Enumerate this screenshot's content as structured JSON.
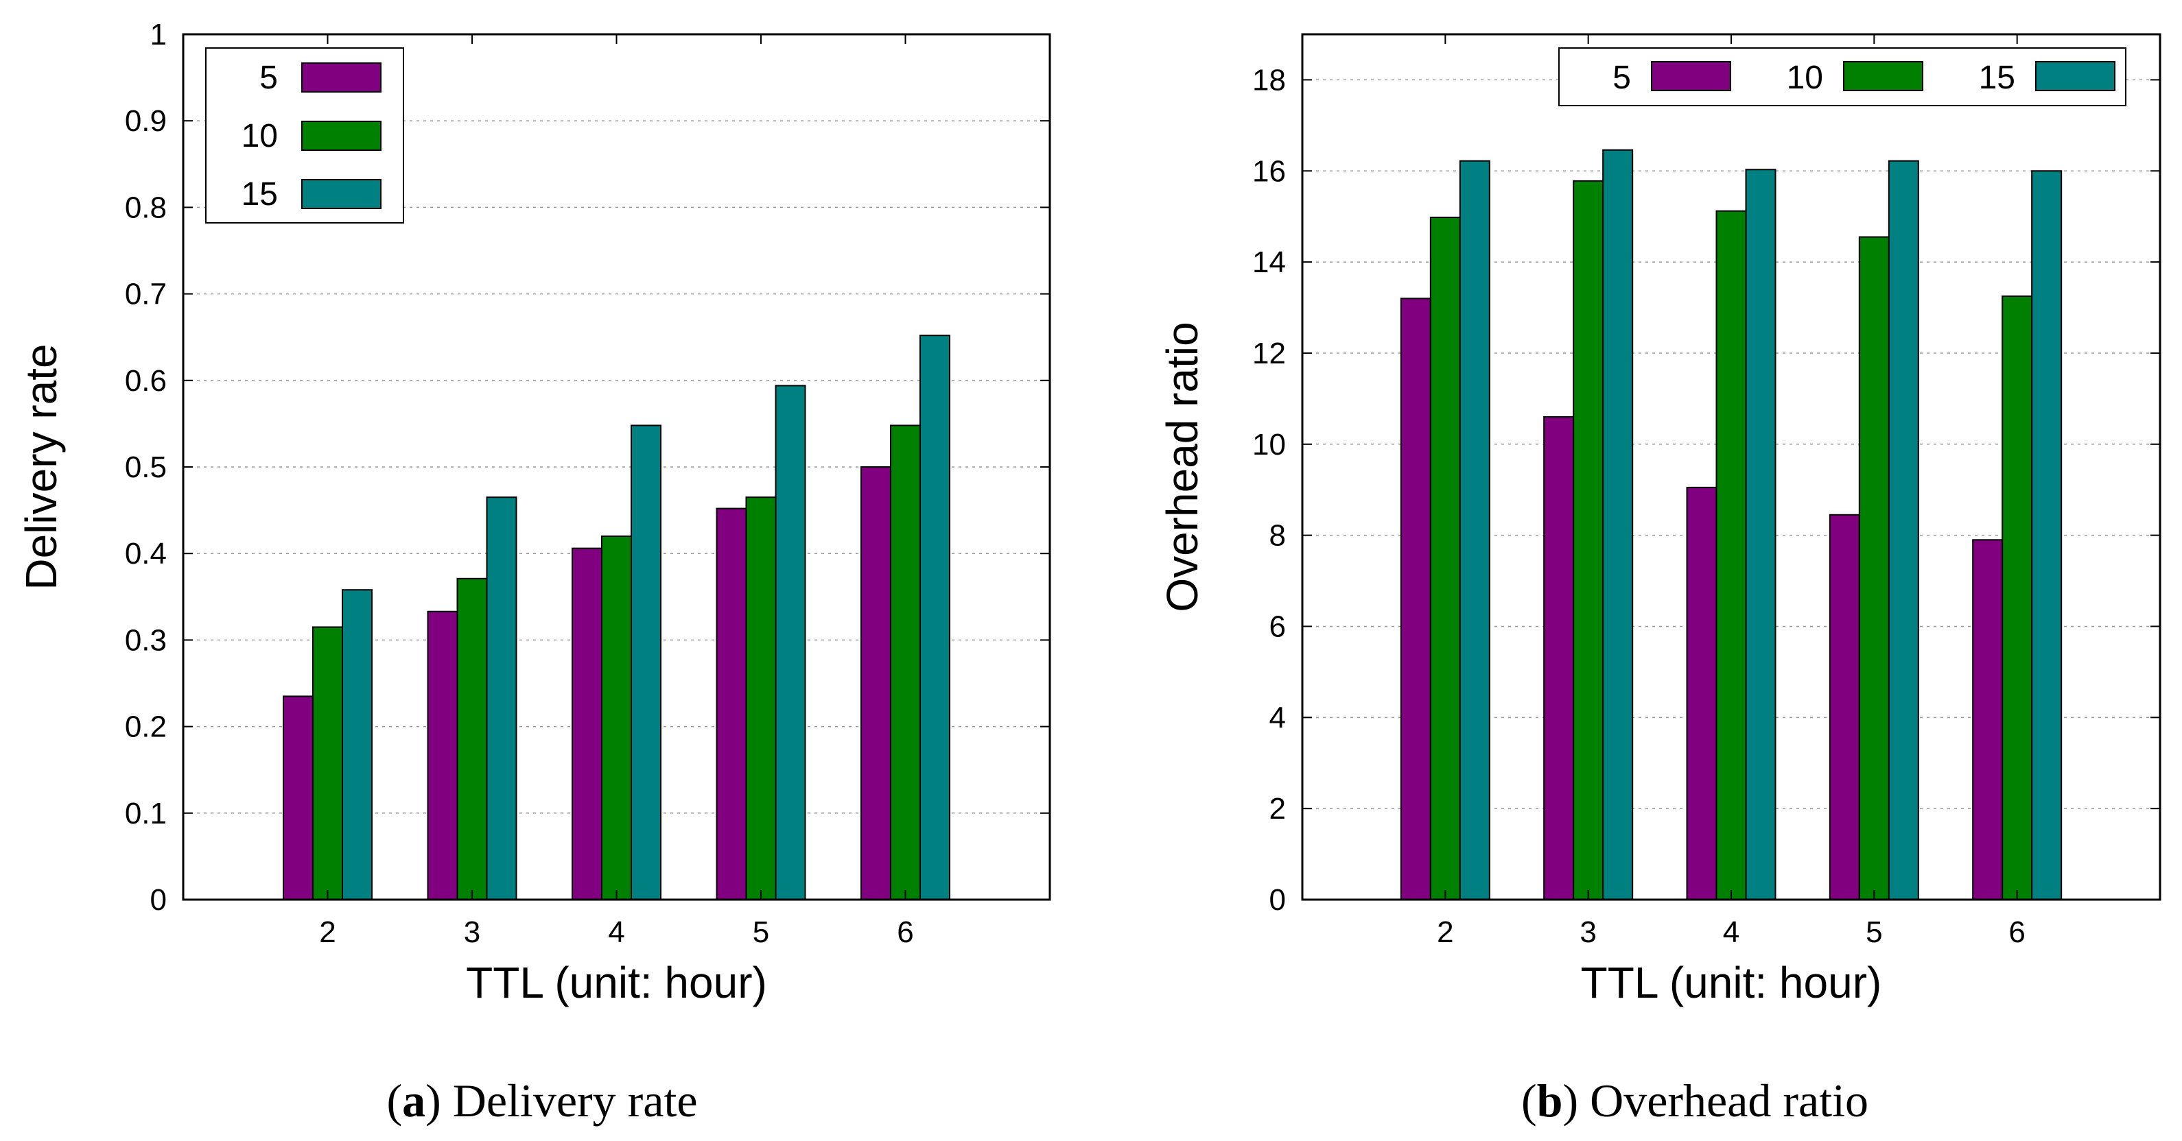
{
  "chart_data": [
    {
      "type": "bar",
      "title": "",
      "xlabel": "TTL (unit: hour)",
      "ylabel": "Delivery rate",
      "categories": [
        "2",
        "3",
        "4",
        "5",
        "6"
      ],
      "ylim": [
        0,
        1
      ],
      "yticks": [
        "0",
        "0.1",
        "0.2",
        "0.3",
        "0.4",
        "0.5",
        "0.6",
        "0.7",
        "0.8",
        "0.9",
        "1"
      ],
      "yticks_values": [
        0,
        0.1,
        0.2,
        0.3,
        0.4,
        0.5,
        0.6,
        0.7,
        0.8,
        0.9,
        1
      ],
      "grid": true,
      "legend_position": "top-left",
      "legend_layout": "vertical",
      "series": [
        {
          "name": "5",
          "color": "#800080",
          "values": [
            0.235,
            0.333,
            0.406,
            0.452,
            0.5
          ]
        },
        {
          "name": "10",
          "color": "#008000",
          "values": [
            0.315,
            0.371,
            0.42,
            0.465,
            0.548
          ]
        },
        {
          "name": "15",
          "color": "#008080",
          "values": [
            0.358,
            0.465,
            0.548,
            0.594,
            0.652
          ]
        }
      ],
      "caption_label": "a",
      "caption_text": "Delivery rate"
    },
    {
      "type": "bar",
      "title": "",
      "xlabel": "TTL (unit: hour)",
      "ylabel": "Overhead ratio",
      "categories": [
        "2",
        "3",
        "4",
        "5",
        "6"
      ],
      "ylim": [
        0,
        19
      ],
      "yticks": [
        "0",
        "2",
        "4",
        "6",
        "8",
        "10",
        "12",
        "14",
        "16",
        "18"
      ],
      "yticks_values": [
        0,
        2,
        4,
        6,
        8,
        10,
        12,
        14,
        16,
        18
      ],
      "grid": true,
      "legend_position": "top-right",
      "legend_layout": "horizontal",
      "series": [
        {
          "name": "5",
          "color": "#800080",
          "values": [
            13.2,
            10.6,
            9.05,
            8.45,
            7.9
          ]
        },
        {
          "name": "10",
          "color": "#008000",
          "values": [
            14.98,
            15.78,
            15.12,
            14.55,
            13.25
          ]
        },
        {
          "name": "15",
          "color": "#008080",
          "values": [
            16.22,
            16.46,
            16.03,
            16.22,
            16.0
          ]
        }
      ],
      "caption_label": "b",
      "caption_text": "Overhead ratio"
    }
  ]
}
